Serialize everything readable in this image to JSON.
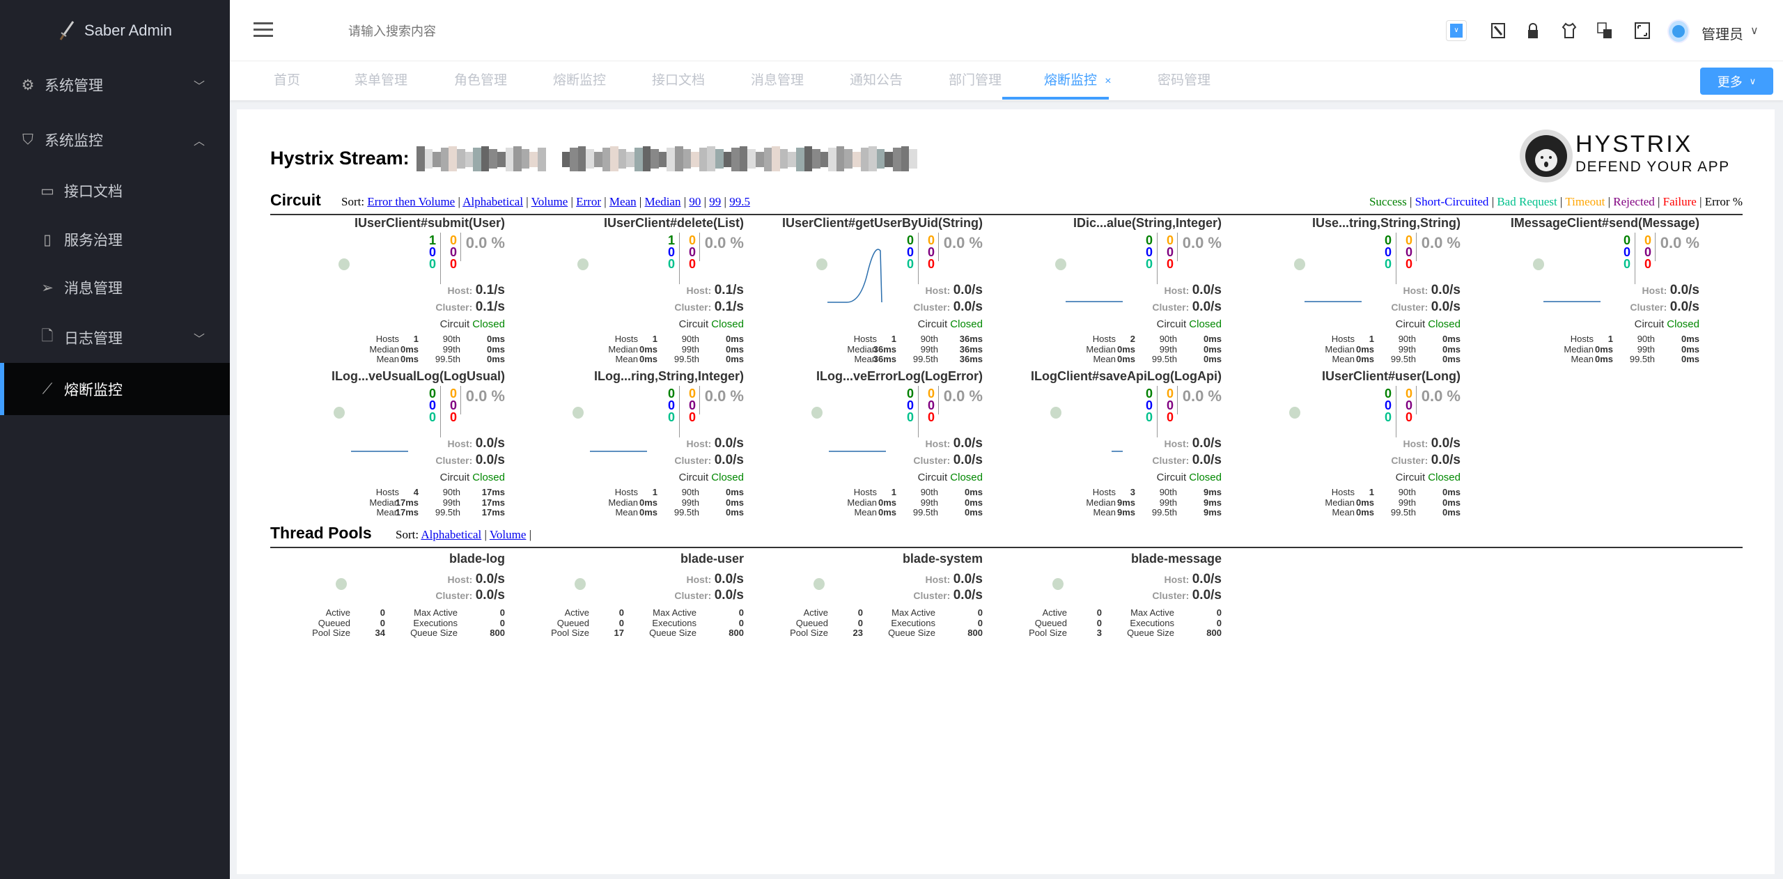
{
  "app": {
    "title": "Saber Admin"
  },
  "sidebar": {
    "items": [
      {
        "label": "系统管理",
        "icon": "gear-icon",
        "chevron": "down"
      },
      {
        "label": "系统监控",
        "icon": "shield-icon",
        "chevron": "up"
      },
      {
        "label": "接口文档",
        "icon": "book-icon"
      },
      {
        "label": "服务治理",
        "icon": "phone-icon"
      },
      {
        "label": "消息管理",
        "icon": "send-icon"
      },
      {
        "label": "日志管理",
        "icon": "document-icon",
        "chevron": "down"
      },
      {
        "label": "熔断监控",
        "icon": "line-chart-icon",
        "active": true
      }
    ]
  },
  "header": {
    "search_placeholder": "请输入搜索内容",
    "user": "管理员"
  },
  "tabs": [
    {
      "label": "首页"
    },
    {
      "label": "菜单管理"
    },
    {
      "label": "角色管理"
    },
    {
      "label": "熔断监控"
    },
    {
      "label": "接口文档"
    },
    {
      "label": "消息管理"
    },
    {
      "label": "通知公告"
    },
    {
      "label": "部门管理"
    },
    {
      "label": "熔断监控",
      "active": true,
      "close": "×"
    },
    {
      "label": "密码管理"
    }
  ],
  "more_button": "更多",
  "colors": {
    "accent": "#409eff",
    "success": "#008000",
    "short": "#0000ff",
    "bad": "#00c18c",
    "timeout": "#ffa500",
    "rejected": "#800080",
    "failure": "#ff0000"
  },
  "hystrix": {
    "stream_label": "Hystrix Stream:",
    "logo": {
      "title": "HYSTRIX",
      "subtitle": "DEFEND YOUR APP"
    },
    "circuit_heading": "Circuit",
    "sort_label": "Sort:",
    "circuit_sorts": [
      "Error then Volume",
      "Alphabetical",
      "Volume",
      "Error",
      "Mean",
      "Median",
      "90",
      "99",
      "99.5"
    ],
    "legend": [
      {
        "label": "Success",
        "color": "#008000"
      },
      {
        "label": "Short-Circuited",
        "color": "#0000ff"
      },
      {
        "label": "Bad Request",
        "color": "#00c18c"
      },
      {
        "label": "Timeout",
        "color": "#ffa500"
      },
      {
        "label": "Rejected",
        "color": "#800080"
      },
      {
        "label": "Failure",
        "color": "#ff0000"
      },
      {
        "label": "Error %",
        "color": "#000000"
      }
    ],
    "labels": {
      "host": "Host:",
      "cluster": "Cluster:",
      "circuit": "Circuit",
      "hosts": "Hosts",
      "median": "Median",
      "mean": "Mean",
      "p90": "90th",
      "p99": "99th",
      "p995": "99.5th",
      "active": "Active",
      "queued": "Queued",
      "pool_size": "Pool Size",
      "max_active": "Max Active",
      "executions": "Executions",
      "queue_size": "Queue Size"
    },
    "circuits": [
      {
        "name": "IUserClient#submit(User)",
        "success": "1",
        "short": "0",
        "bad": "0",
        "timeout": "0",
        "rejected": "0",
        "failure": "0",
        "error_pct": "0.0 %",
        "host": "0.1/s",
        "cluster": "0.1/s",
        "status": "Closed",
        "hosts": "1",
        "median": "0ms",
        "mean": "0ms",
        "p90": "0ms",
        "p99": "0ms",
        "p995": "0ms",
        "spark": "none"
      },
      {
        "name": "IUserClient#delete(List)",
        "success": "1",
        "short": "0",
        "bad": "0",
        "timeout": "0",
        "rejected": "0",
        "failure": "0",
        "error_pct": "0.0 %",
        "host": "0.1/s",
        "cluster": "0.1/s",
        "status": "Closed",
        "hosts": "1",
        "median": "0ms",
        "mean": "0ms",
        "p90": "0ms",
        "p99": "0ms",
        "p995": "0ms",
        "spark": "none"
      },
      {
        "name": "IUserClient#getUserByUid(String)",
        "success": "0",
        "short": "0",
        "bad": "0",
        "timeout": "0",
        "rejected": "0",
        "failure": "0",
        "error_pct": "0.0 %",
        "host": "0.0/s",
        "cluster": "0.0/s",
        "status": "Closed",
        "hosts": "1",
        "median": "36ms",
        "mean": "36ms",
        "p90": "36ms",
        "p99": "36ms",
        "p995": "36ms",
        "spark": "peak"
      },
      {
        "name": "IDic...alue(String,Integer)",
        "success": "0",
        "short": "0",
        "bad": "0",
        "timeout": "0",
        "rejected": "0",
        "failure": "0",
        "error_pct": "0.0 %",
        "host": "0.0/s",
        "cluster": "0.0/s",
        "status": "Closed",
        "hosts": "2",
        "median": "0ms",
        "mean": "0ms",
        "p90": "0ms",
        "p99": "0ms",
        "p995": "0ms",
        "spark": "flat"
      },
      {
        "name": "IUse...tring,String,String)",
        "success": "0",
        "short": "0",
        "bad": "0",
        "timeout": "0",
        "rejected": "0",
        "failure": "0",
        "error_pct": "0.0 %",
        "host": "0.0/s",
        "cluster": "0.0/s",
        "status": "Closed",
        "hosts": "1",
        "median": "0ms",
        "mean": "0ms",
        "p90": "0ms",
        "p99": "0ms",
        "p995": "0ms",
        "spark": "flat"
      },
      {
        "name": "IMessageClient#send(Message)",
        "success": "0",
        "short": "0",
        "bad": "0",
        "timeout": "0",
        "rejected": "0",
        "failure": "0",
        "error_pct": "0.0 %",
        "host": "0.0/s",
        "cluster": "0.0/s",
        "status": "Closed",
        "hosts": "1",
        "median": "0ms",
        "mean": "0ms",
        "p90": "0ms",
        "p99": "0ms",
        "p995": "0ms",
        "spark": "flat"
      },
      {
        "name": "ILog...veUsualLog(LogUsual)",
        "success": "0",
        "short": "0",
        "bad": "0",
        "timeout": "0",
        "rejected": "0",
        "failure": "0",
        "error_pct": "0.0 %",
        "host": "0.0/s",
        "cluster": "0.0/s",
        "status": "Closed",
        "hosts": "4",
        "median": "17ms",
        "mean": "17ms",
        "p90": "17ms",
        "p99": "17ms",
        "p995": "17ms",
        "spark": "flat"
      },
      {
        "name": "ILog...ring,String,Integer)",
        "success": "0",
        "short": "0",
        "bad": "0",
        "timeout": "0",
        "rejected": "0",
        "failure": "0",
        "error_pct": "0.0 %",
        "host": "0.0/s",
        "cluster": "0.0/s",
        "status": "Closed",
        "hosts": "1",
        "median": "0ms",
        "mean": "0ms",
        "p90": "0ms",
        "p99": "0ms",
        "p995": "0ms",
        "spark": "flat"
      },
      {
        "name": "ILog...veErrorLog(LogError)",
        "success": "0",
        "short": "0",
        "bad": "0",
        "timeout": "0",
        "rejected": "0",
        "failure": "0",
        "error_pct": "0.0 %",
        "host": "0.0/s",
        "cluster": "0.0/s",
        "status": "Closed",
        "hosts": "1",
        "median": "0ms",
        "mean": "0ms",
        "p90": "0ms",
        "p99": "0ms",
        "p995": "0ms",
        "spark": "flat"
      },
      {
        "name": "ILogClient#saveApiLog(LogApi)",
        "success": "0",
        "short": "0",
        "bad": "0",
        "timeout": "0",
        "rejected": "0",
        "failure": "0",
        "error_pct": "0.0 %",
        "host": "0.0/s",
        "cluster": "0.0/s",
        "status": "Closed",
        "hosts": "3",
        "median": "9ms",
        "mean": "9ms",
        "p90": "9ms",
        "p99": "9ms",
        "p995": "9ms",
        "spark": "short"
      },
      {
        "name": "IUserClient#user(Long)",
        "success": "0",
        "short": "0",
        "bad": "0",
        "timeout": "0",
        "rejected": "0",
        "failure": "0",
        "error_pct": "0.0 %",
        "host": "0.0/s",
        "cluster": "0.0/s",
        "status": "Closed",
        "hosts": "1",
        "median": "0ms",
        "mean": "0ms",
        "p90": "0ms",
        "p99": "0ms",
        "p995": "0ms",
        "spark": "none"
      }
    ],
    "pools_heading": "Thread Pools",
    "pool_sorts": [
      "Alphabetical",
      "Volume"
    ],
    "pools": [
      {
        "name": "blade-log",
        "host": "0.0/s",
        "cluster": "0.0/s",
        "active": "0",
        "queued": "0",
        "pool_size": "34",
        "max_active": "0",
        "executions": "0",
        "queue_size": "800"
      },
      {
        "name": "blade-user",
        "host": "0.0/s",
        "cluster": "0.0/s",
        "active": "0",
        "queued": "0",
        "pool_size": "17",
        "max_active": "0",
        "executions": "0",
        "queue_size": "800"
      },
      {
        "name": "blade-system",
        "host": "0.0/s",
        "cluster": "0.0/s",
        "active": "0",
        "queued": "0",
        "pool_size": "23",
        "max_active": "0",
        "executions": "0",
        "queue_size": "800"
      },
      {
        "name": "blade-message",
        "host": "0.0/s",
        "cluster": "0.0/s",
        "active": "0",
        "queued": "0",
        "pool_size": "3",
        "max_active": "0",
        "executions": "0",
        "queue_size": "800"
      }
    ]
  }
}
